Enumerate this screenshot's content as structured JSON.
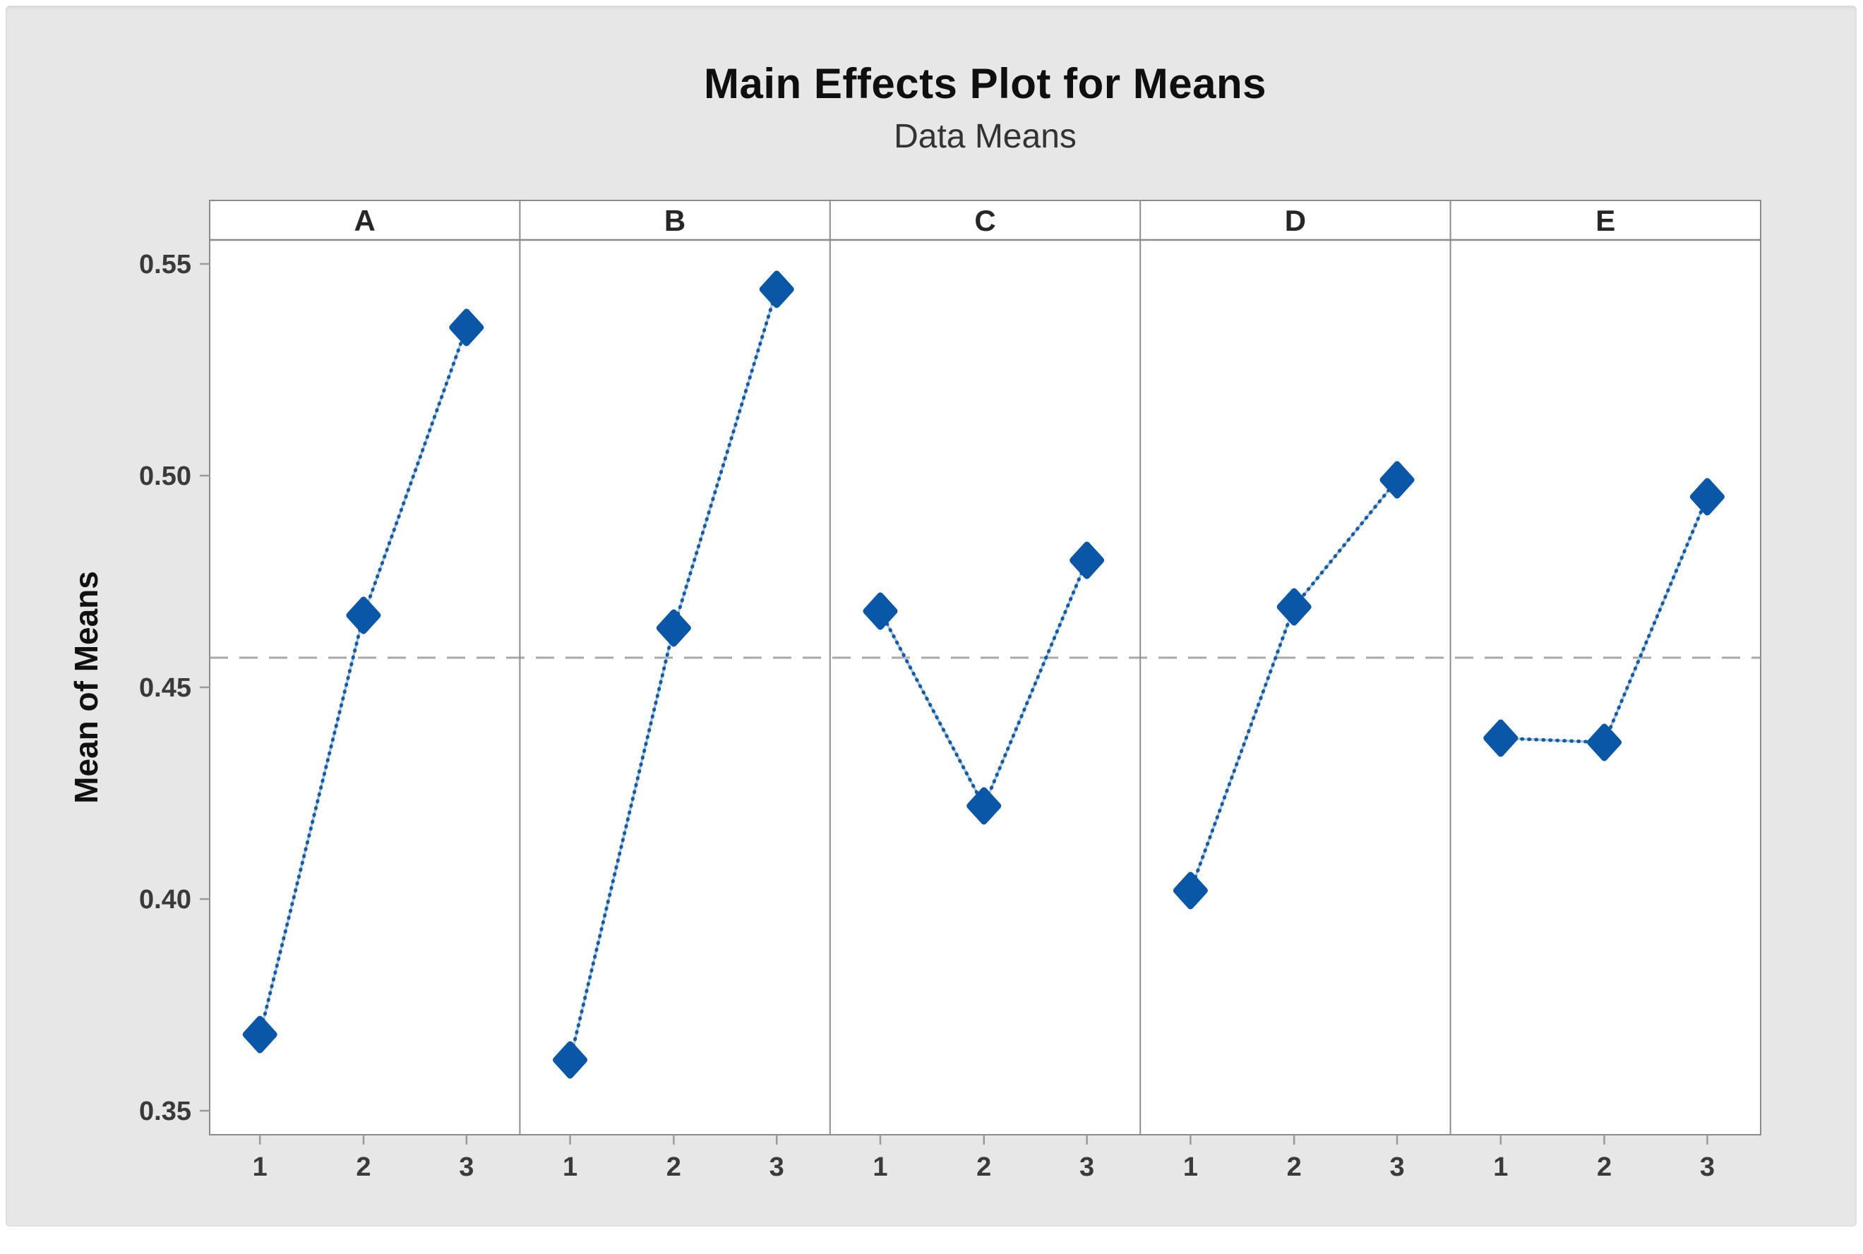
{
  "window": {
    "outer_background": "#ffffff",
    "panel_background": "#e7e7e7"
  },
  "chart_data": {
    "type": "line",
    "title": "Main Effects Plot for Means",
    "subtitle": "Data Means",
    "ylabel": "Mean of Means",
    "xlabel": "",
    "panel_headers": [
      "A",
      "B",
      "C",
      "D",
      "E"
    ],
    "x_levels": [
      "1",
      "2",
      "3"
    ],
    "series": [
      {
        "name": "A",
        "values": [
          0.368,
          0.467,
          0.535
        ]
      },
      {
        "name": "B",
        "values": [
          0.362,
          0.464,
          0.544
        ]
      },
      {
        "name": "C",
        "values": [
          0.468,
          0.422,
          0.48
        ]
      },
      {
        "name": "D",
        "values": [
          0.402,
          0.469,
          0.499
        ]
      },
      {
        "name": "E",
        "values": [
          0.438,
          0.437,
          0.495
        ]
      }
    ],
    "y_ticks": [
      {
        "label": "0.55",
        "value": 0.55
      },
      {
        "label": "0.50",
        "value": 0.5
      },
      {
        "label": "0.45",
        "value": 0.45
      },
      {
        "label": "0.40",
        "value": 0.4
      },
      {
        "label": "0.35",
        "value": 0.35
      }
    ],
    "ylim": [
      0.344,
      0.556
    ],
    "reference_line": {
      "value": 0.457,
      "style": "dashed"
    },
    "grid": false,
    "legend": null,
    "colors": {
      "marker": "#0a57a7",
      "line_dots": "#0d5dab",
      "line_halo": "#b5c3d5",
      "reference": "#a9a9a9",
      "frame": "#8c8c8c",
      "tick": "#9a9a9a",
      "plot_background": "#ffffff",
      "text": "#3a3a3a"
    }
  }
}
